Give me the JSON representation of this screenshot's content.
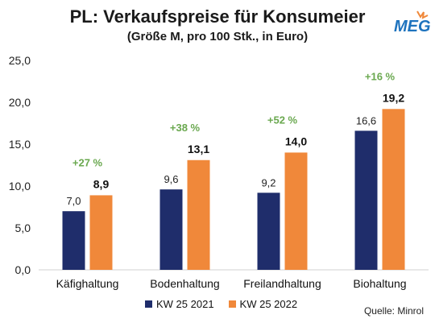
{
  "title": "PL: Verkaufspreise für Konsumeier",
  "subtitle": "(Größe M, pro 100 Stk., in Euro)",
  "logo_text": "MEG",
  "source": "Quelle: Minrol",
  "colors": {
    "series_2021": "#1f2d6b",
    "series_2022": "#f0883a",
    "pct": "#6aa84f",
    "logo_blue": "#1e73be",
    "logo_orange": "#f0883a"
  },
  "chart_data": {
    "type": "bar",
    "categories": [
      "Käfighaltung",
      "Bodenhaltung",
      "Freilandhaltung",
      "Biohaltung"
    ],
    "series": [
      {
        "name": "KW 25 2021",
        "values": [
          7.0,
          9.6,
          9.2,
          16.6
        ],
        "labels": [
          "7,0",
          "9,6",
          "9,2",
          "16,6"
        ]
      },
      {
        "name": "KW 25 2022",
        "values": [
          8.9,
          13.1,
          14.0,
          19.2
        ],
        "labels": [
          "8,9",
          "13,1",
          "14,0",
          "19,2"
        ]
      }
    ],
    "changes": [
      "+27 %",
      "+38 %",
      "+52 %",
      "+16 %"
    ],
    "ylim": [
      0,
      25
    ],
    "yticks": [
      0,
      5,
      10,
      15,
      20,
      25
    ],
    "ytick_labels": [
      "0,0",
      "5,0",
      "10,0",
      "15,0",
      "20,0",
      "25,0"
    ],
    "legend_position": "bottom"
  }
}
